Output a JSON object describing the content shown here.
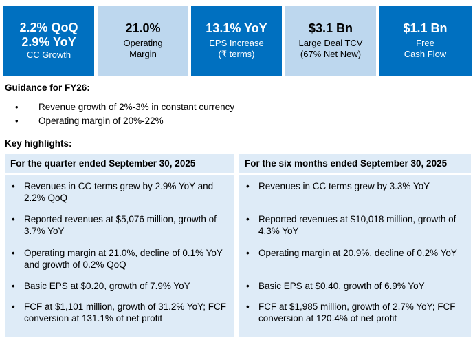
{
  "tiles": [
    {
      "line1": "2.2% QoQ",
      "line2": "2.9% YoY",
      "line3": "CC Growth"
    },
    {
      "line1": "21.0%",
      "line2": "Operating",
      "line3": "Margin"
    },
    {
      "line1": "13.1% YoY",
      "line2": "EPS Increase",
      "line3": "(₹ terms)"
    },
    {
      "line1": "$3.1 Bn",
      "line2": "Large Deal TCV",
      "line3": "(67% Net New)"
    },
    {
      "line1": "$1.1 Bn",
      "line2": "Free",
      "line3": "Cash Flow"
    }
  ],
  "guidance": {
    "title": "Guidance for FY26:",
    "items": [
      "Revenue growth of 2%-3% in constant currency",
      "Operating margin of 20%-22%"
    ]
  },
  "highlights": {
    "title": "Key highlights:",
    "quarter": {
      "title": "For the quarter ended September 30, 2025",
      "items": [
        "Revenues in CC terms grew by 2.9% YoY and 2.2% QoQ",
        "Reported revenues at $5,076 million, growth of 3.7% YoY",
        "Operating margin at 21.0%, decline of 0.1% YoY and growth of 0.2% QoQ",
        "Basic EPS at $0.20, growth of 7.9% YoY",
        "FCF at $1,101 million, growth of 31.2% YoY; FCF conversion at 131.1% of net profit"
      ]
    },
    "six_months": {
      "title": "For the six months ended September 30, 2025",
      "items": [
        "Revenues in CC terms grew by 3.3% YoY",
        "Reported revenues at $10,018 million, growth of 4.3% YoY",
        "Operating margin at 20.9%, decline of 0.2% YoY",
        "Basic EPS at $0.40, growth of 6.9% YoY",
        "FCF at $1,985 million, growth of 2.7% YoY; FCF conversion at 120.4% of net profit"
      ]
    }
  },
  "colors": {
    "tile_dark": "#0070C0",
    "tile_light": "#BDD7EE",
    "panel_bg": "#DEEBF7"
  }
}
